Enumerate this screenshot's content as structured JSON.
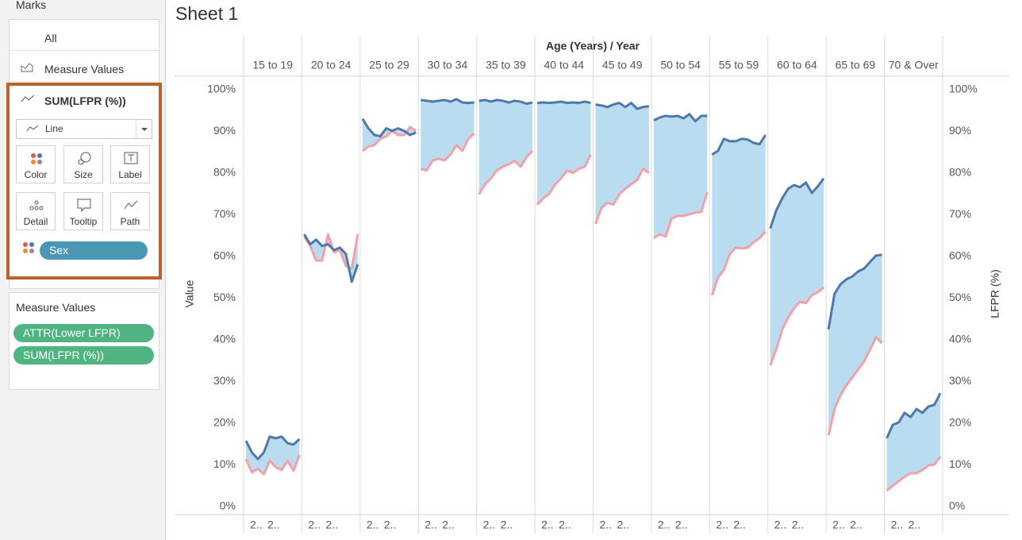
{
  "marks_card": {
    "title": "Marks",
    "all": "All",
    "measure_values": "Measure Values",
    "active_measure": "SUM(LFPR (%))",
    "mark_type": "Line",
    "buttons": [
      "Color",
      "Size",
      "Label",
      "Detail",
      "Tooltip",
      "Path"
    ],
    "pill": "Sex"
  },
  "measure_values_card": {
    "title": "Measure Values",
    "pills": [
      "ATTR(Lower LFPR)",
      "SUM(LFPR (%))"
    ]
  },
  "chart_data": {
    "type": "line",
    "title": "Sheet 1",
    "column_header": "Age (Years) / Year",
    "categories": [
      "15 to 19",
      "20 to 24",
      "25 to 29",
      "30 to 34",
      "35 to 39",
      "40 to 44",
      "45 to 49",
      "50 to 54",
      "55 to 59",
      "60 to 64",
      "65 to 69",
      "70 & Over"
    ],
    "x_labels": [
      "2..",
      "2.."
    ],
    "ylabel": "Value",
    "y2label": "LFPR (%)",
    "ylim": [
      -1.9,
      103
    ],
    "y2lim": [
      -1.9,
      103
    ],
    "yticks": [
      {
        "value": 0,
        "label": "0%"
      },
      {
        "value": 10,
        "label": "10%"
      },
      {
        "value": 20,
        "label": "20%"
      },
      {
        "value": 30,
        "label": "30%"
      },
      {
        "value": 40,
        "label": "40%"
      },
      {
        "value": 50,
        "label": "50%"
      },
      {
        "value": 60,
        "label": "60%"
      },
      {
        "value": 70,
        "label": "70%"
      },
      {
        "value": 80,
        "label": "80%"
      },
      {
        "value": 90,
        "label": "90%"
      },
      {
        "value": 100,
        "label": "100%"
      }
    ],
    "y2ticks": [
      {
        "value": 0,
        "label": "0%"
      },
      {
        "value": 10,
        "label": "10%"
      },
      {
        "value": 20,
        "label": "20%"
      },
      {
        "value": 30,
        "label": "30%"
      },
      {
        "value": 40,
        "label": "40%"
      },
      {
        "value": 50,
        "label": "50%"
      },
      {
        "value": 60,
        "label": "60%"
      },
      {
        "value": 70,
        "label": "70%"
      },
      {
        "value": 80,
        "label": "80%"
      },
      {
        "value": 90,
        "label": "90%"
      },
      {
        "value": 100,
        "label": "100%"
      }
    ],
    "fill_color": "#b9dcf1",
    "series": [
      {
        "color": "#4e79a7",
        "values": [
          [
            15.8,
            13.0,
            11.4,
            13.0,
            16.8,
            16.4,
            16.8,
            15.2,
            14.9,
            16.2
          ],
          [
            65.3,
            62.9,
            64.0,
            62.5,
            62.9,
            61.5,
            62.1,
            60.6,
            53.9,
            58.1
          ],
          [
            93.0,
            90.7,
            89.1,
            88.8,
            90.7,
            90.1,
            90.7,
            90.1,
            89.1,
            89.7
          ],
          [
            97.5,
            97.3,
            97.1,
            97.3,
            97.5,
            97.1,
            97.7,
            96.9,
            96.8,
            96.9
          ],
          [
            97.3,
            97.5,
            97.1,
            97.5,
            97.3,
            96.9,
            97.3,
            97.1,
            96.6,
            96.9
          ],
          [
            96.8,
            96.9,
            96.8,
            96.9,
            97.1,
            96.8,
            96.9,
            96.8,
            97.1,
            96.8
          ],
          [
            96.4,
            96.2,
            95.8,
            96.4,
            96.8,
            95.8,
            96.8,
            95.4,
            95.8,
            96.0
          ],
          [
            92.6,
            93.3,
            93.7,
            93.5,
            93.7,
            93.1,
            94.1,
            92.4,
            93.7,
            93.7
          ],
          [
            84.4,
            85.3,
            88.2,
            87.6,
            87.6,
            88.2,
            88.0,
            87.2,
            86.9,
            89.1
          ],
          [
            66.7,
            71.0,
            73.9,
            76.2,
            77.1,
            76.6,
            77.7,
            75.2,
            76.8,
            78.7
          ],
          [
            42.5,
            51.0,
            53.3,
            54.5,
            55.2,
            56.4,
            57.1,
            58.7,
            60.2,
            60.4
          ],
          [
            16.4,
            19.6,
            20.2,
            22.5,
            21.5,
            23.4,
            22.5,
            24.0,
            24.4,
            27.2
          ]
        ]
      },
      {
        "color": "#f4a0a8",
        "values": [
          [
            11.4,
            8.2,
            9.1,
            7.8,
            11.0,
            9.5,
            8.8,
            11.0,
            8.6,
            12.4
          ],
          [
            64.8,
            62.5,
            59.0,
            59.0,
            65.3,
            61.0,
            61.5,
            57.7,
            57.1,
            65.3
          ],
          [
            85.3,
            86.3,
            86.7,
            88.2,
            88.8,
            90.1,
            89.1,
            89.1,
            91.0,
            90.1
          ],
          [
            81.0,
            80.6,
            83.0,
            83.4,
            83.0,
            84.4,
            86.7,
            85.3,
            88.2,
            89.5
          ],
          [
            74.9,
            77.3,
            78.7,
            80.6,
            81.5,
            82.1,
            82.9,
            81.5,
            83.8,
            85.3
          ],
          [
            72.4,
            73.9,
            75.0,
            77.3,
            78.7,
            80.6,
            80.0,
            81.0,
            81.5,
            84.4
          ],
          [
            67.8,
            71.6,
            72.9,
            72.4,
            74.9,
            76.2,
            77.3,
            78.3,
            81.0,
            80.0
          ],
          [
            64.4,
            65.3,
            64.8,
            69.1,
            69.7,
            69.7,
            70.1,
            70.5,
            70.7,
            75.4
          ],
          [
            50.7,
            54.9,
            56.8,
            60.6,
            62.1,
            61.9,
            62.1,
            63.4,
            64.4,
            65.9
          ],
          [
            33.9,
            37.7,
            42.5,
            45.3,
            47.6,
            49.1,
            48.8,
            50.7,
            51.4,
            52.6
          ],
          [
            17.1,
            23.4,
            26.7,
            29.1,
            31.0,
            32.9,
            34.9,
            37.7,
            40.6,
            39.2
          ],
          [
            3.8,
            5.0,
            6.1,
            7.2,
            8.0,
            8.0,
            8.8,
            9.9,
            10.1,
            12.0
          ]
        ]
      }
    ]
  }
}
